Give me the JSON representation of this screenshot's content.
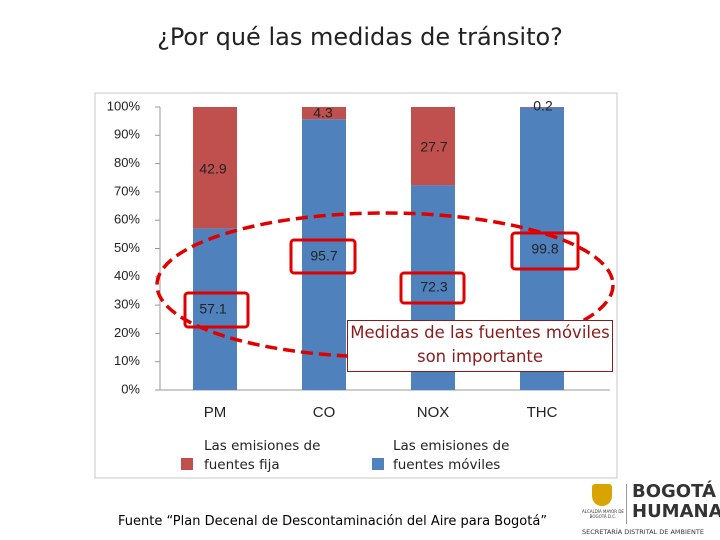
{
  "chart_data": {
    "type": "stacked_bar",
    "title": "¿Por qué las medidas de tránsito?",
    "categories": [
      "PM",
      "CO",
      "NOX",
      "THC"
    ],
    "series": [
      {
        "name": "Las emisiones de fuentes móviles",
        "color": "#4f81bd",
        "values": [
          57.1,
          95.7,
          72.3,
          99.8
        ]
      },
      {
        "name": "Las emisiones de fuentes fija",
        "color": "#c0504d",
        "values": [
          42.9,
          4.3,
          27.7,
          0.2
        ]
      }
    ],
    "ylim": [
      0,
      100
    ],
    "yticks": [
      {
        "value": 0,
        "label": "0%"
      },
      {
        "value": 10,
        "label": "10%"
      },
      {
        "value": 20,
        "label": "20%"
      },
      {
        "value": 30,
        "label": "30%"
      },
      {
        "value": 40,
        "label": "40%"
      },
      {
        "value": 50,
        "label": "50%"
      },
      {
        "value": 60,
        "label": "60%"
      },
      {
        "value": 70,
        "label": "70%"
      },
      {
        "value": 80,
        "label": "80%"
      },
      {
        "value": 90,
        "label": "90%"
      },
      {
        "value": 100,
        "label": "100%"
      }
    ],
    "grid": false,
    "annotation": "Medidas de las fuentes móviles son importante",
    "source": "Fuente “Plan Decenal de Descontaminación del Aire para Bogotá”"
  },
  "logo": {
    "brand_top": "BOGOTÁ",
    "brand_bottom": "HUMANA",
    "office": "SECRETARÍA DISTRITAL DE AMBIENTE",
    "mayor": "ALCALDÍA MAYOR DE BOGOTÁ D.C."
  }
}
